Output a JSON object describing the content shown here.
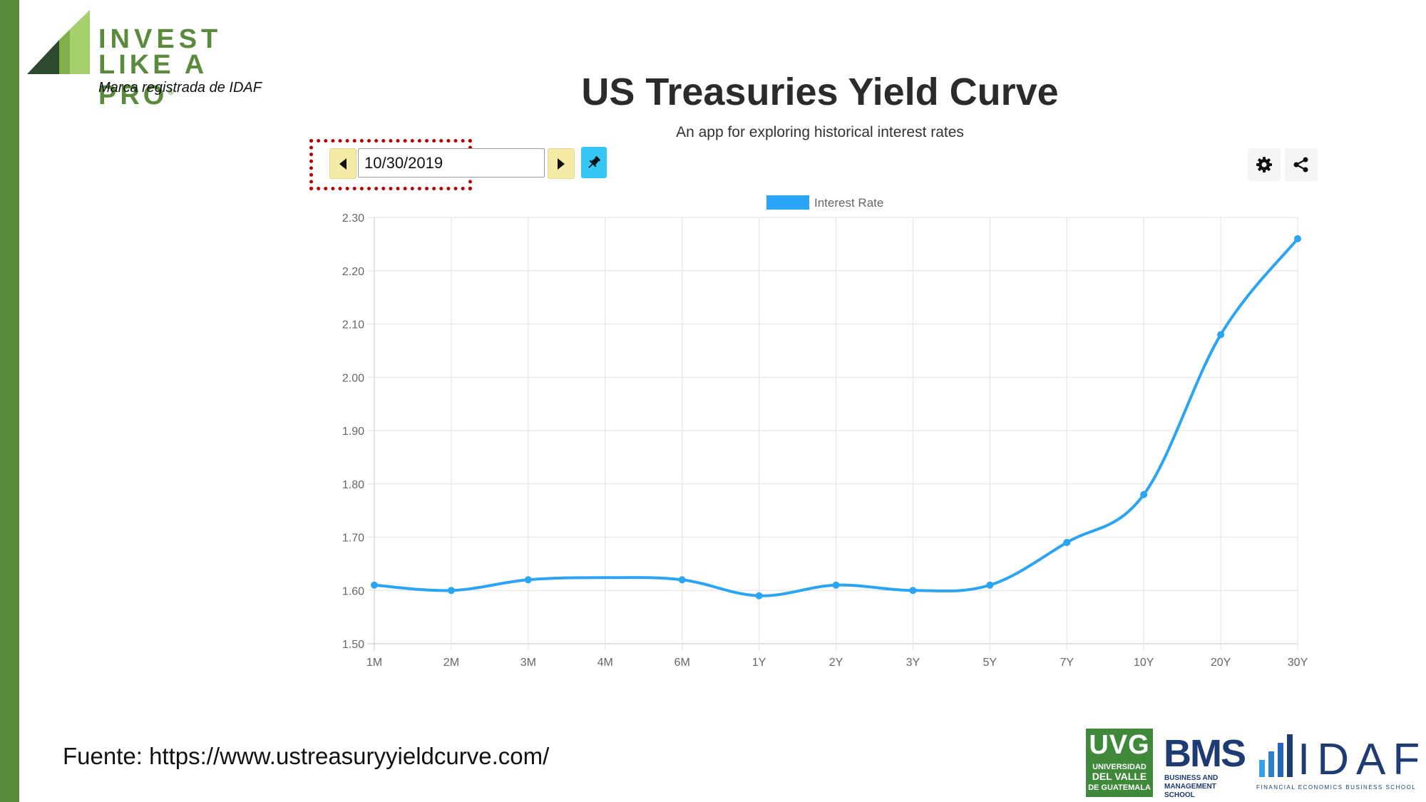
{
  "branding": {
    "logo_line1": "INVEST",
    "logo_line2": "LIKE A PRO",
    "logo_registered": "®",
    "tagline": "Marca registrada de IDAF"
  },
  "header": {
    "title": "US Treasuries Yield Curve",
    "subtitle": "An app for exploring historical interest rates"
  },
  "controls": {
    "date_value": "10/30/2019",
    "prev_icon": "caret-left-icon",
    "next_icon": "caret-right-icon",
    "pin_icon": "pin-icon",
    "settings_icon": "gear-icon",
    "share_icon": "share-icon"
  },
  "colors": {
    "line": "#2aa4f4",
    "accent_green": "#5a8a3c",
    "highlight_red": "#c00000",
    "nav_button": "#f4eba6",
    "pin_button": "#35c6f4"
  },
  "chart_data": {
    "type": "line",
    "categories": [
      "1M",
      "2M",
      "3M",
      "4M",
      "6M",
      "1Y",
      "2Y",
      "3Y",
      "5Y",
      "7Y",
      "10Y",
      "20Y",
      "30Y"
    ],
    "series": [
      {
        "name": "Interest Rate",
        "values": [
          1.61,
          1.6,
          1.62,
          null,
          1.62,
          1.59,
          1.61,
          1.6,
          1.61,
          1.69,
          1.78,
          2.08,
          2.26
        ]
      }
    ],
    "ylim": [
      1.5,
      2.3
    ],
    "yticks": [
      "1.50",
      "1.60",
      "1.70",
      "1.80",
      "1.90",
      "2.00",
      "2.10",
      "2.20",
      "2.30"
    ],
    "grid": true,
    "legend": "top-center",
    "smooth": true
  },
  "footer": {
    "source": "Fuente: https://www.ustreasuryyieldcurve.com/",
    "uvg_big": "UVG",
    "uvg_line1": "UNIVERSIDAD",
    "uvg_line2": "DEL VALLE",
    "uvg_line3": "DE GUATEMALA",
    "bms_big": "BMS",
    "bms_line1": "BUSINESS AND",
    "bms_line2": "MANAGEMENT SCHOOL",
    "idaf_big": "IDAF",
    "idaf_small": "FINANCIAL ECONOMICS BUSINESS SCHOOL"
  }
}
